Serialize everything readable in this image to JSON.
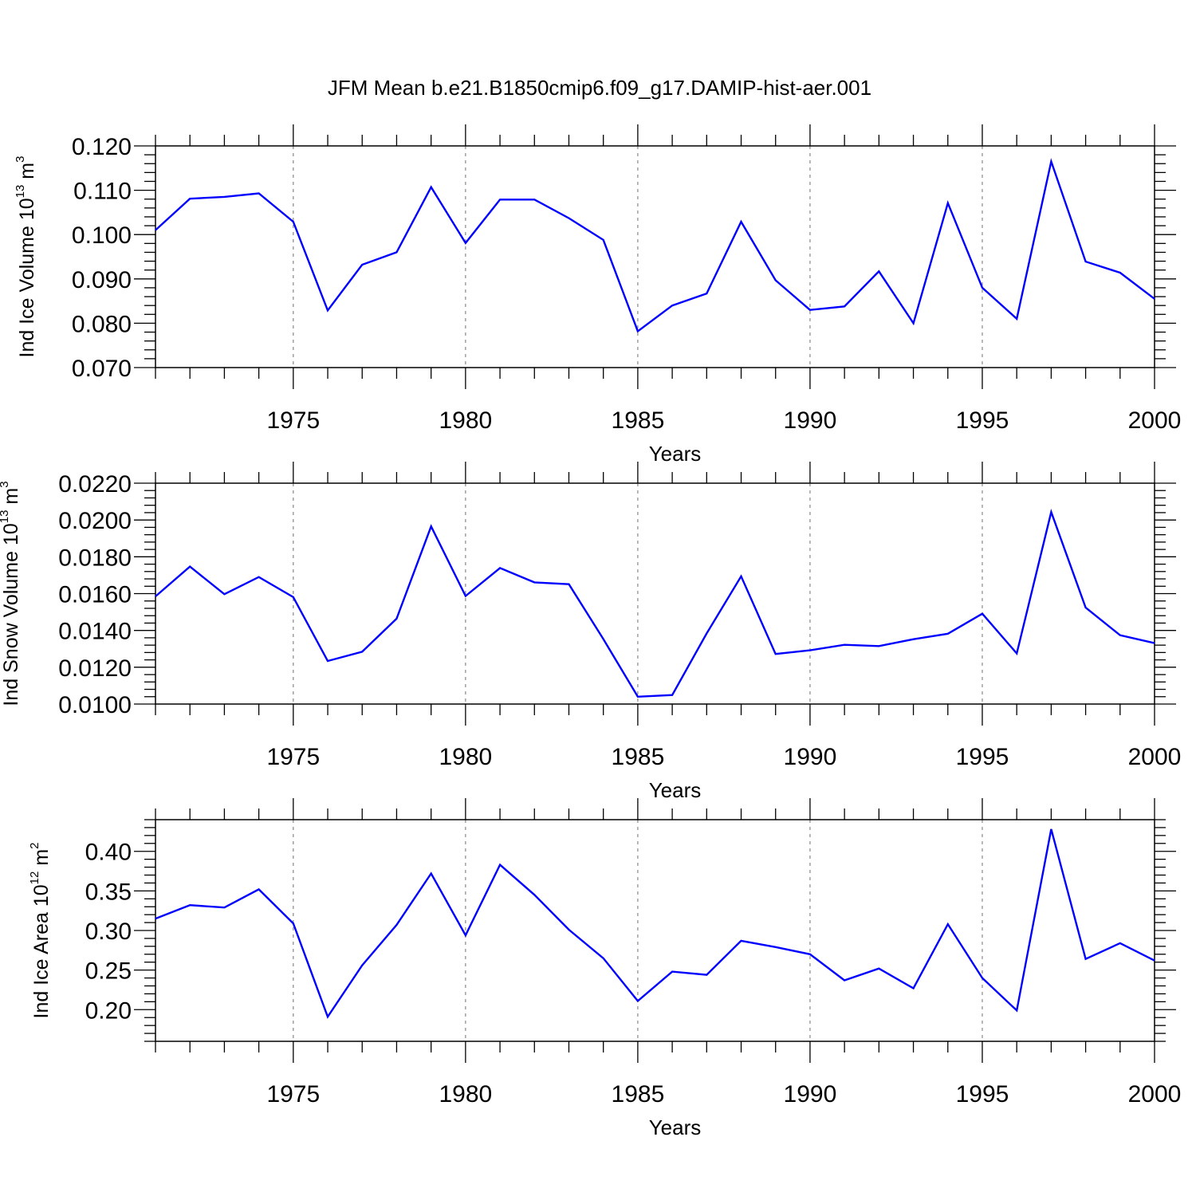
{
  "title": "JFM Mean b.e21.B1850cmip6.f09_g17.DAMIP-hist-aer.001",
  "chart_data": [
    {
      "type": "line",
      "id": "ice-volume",
      "ylabel": "Ind Ice Volume 10",
      "ylabel_exp": "13",
      "ylabel_unit": " m",
      "ylabel_unit_exp": "3",
      "xlabel": "Years",
      "xlim": [
        1971,
        2000
      ],
      "ylim": [
        0.07,
        0.12
      ],
      "yticks": [
        0.07,
        0.08,
        0.09,
        0.1,
        0.11,
        0.12
      ],
      "ytick_labels": [
        "0.070",
        "0.080",
        "0.090",
        "0.100",
        "0.110",
        "0.120"
      ],
      "xticks": [
        1975,
        1980,
        1985,
        1990,
        1995,
        2000
      ],
      "xtick_labels": [
        "1975",
        "1980",
        "1985",
        "1990",
        "1995",
        "2000"
      ],
      "line_color": "#0000ff",
      "x": [
        1971,
        1972,
        1973,
        1974,
        1975,
        1976,
        1977,
        1978,
        1979,
        1980,
        1981,
        1982,
        1983,
        1984,
        1985,
        1986,
        1987,
        1988,
        1989,
        1990,
        1991,
        1992,
        1993,
        1994,
        1995,
        1996,
        1997,
        1998,
        1999,
        2000
      ],
      "values": [
        0.101,
        0.1081,
        0.1085,
        0.1093,
        0.1029,
        0.0829,
        0.0932,
        0.096,
        0.1107,
        0.0981,
        0.1079,
        0.1079,
        0.1037,
        0.0988,
        0.0782,
        0.084,
        0.0867,
        0.1029,
        0.0897,
        0.083,
        0.0838,
        0.0917,
        0.08,
        0.1071,
        0.088,
        0.081,
        0.1165,
        0.0939,
        0.0914,
        0.0855
      ]
    },
    {
      "type": "line",
      "id": "snow-volume",
      "ylabel": "Ind Snow Volume 10",
      "ylabel_exp": "13",
      "ylabel_unit": " m",
      "ylabel_unit_exp": "3",
      "xlabel": "Years",
      "xlim": [
        1971,
        2000
      ],
      "ylim": [
        0.01,
        0.022
      ],
      "yticks": [
        0.01,
        0.012,
        0.014,
        0.016,
        0.018,
        0.02,
        0.022
      ],
      "ytick_labels": [
        "0.0100",
        "0.0120",
        "0.0140",
        "0.0160",
        "0.0180",
        "0.0200",
        "0.0220"
      ],
      "xticks": [
        1975,
        1980,
        1985,
        1990,
        1995,
        2000
      ],
      "xtick_labels": [
        "1975",
        "1980",
        "1985",
        "1990",
        "1995",
        "2000"
      ],
      "line_color": "#0000ff",
      "x": [
        1971,
        1972,
        1973,
        1974,
        1975,
        1976,
        1977,
        1978,
        1979,
        1980,
        1981,
        1982,
        1983,
        1984,
        1985,
        1986,
        1987,
        1988,
        1989,
        1990,
        1991,
        1992,
        1993,
        1994,
        1995,
        1996,
        1997,
        1998,
        1999,
        2000
      ],
      "values": [
        0.01585,
        0.01747,
        0.01597,
        0.0169,
        0.01581,
        0.01234,
        0.01284,
        0.01464,
        0.01965,
        0.01587,
        0.01739,
        0.01661,
        0.01651,
        0.01353,
        0.0104,
        0.01049,
        0.01384,
        0.01694,
        0.01272,
        0.01292,
        0.01322,
        0.01315,
        0.01352,
        0.01382,
        0.01491,
        0.01275,
        0.02043,
        0.01524,
        0.01374,
        0.01331
      ]
    },
    {
      "type": "line",
      "id": "ice-area",
      "ylabel": "Ind Ice Area 10",
      "ylabel_exp": "12",
      "ylabel_unit": " m",
      "ylabel_unit_exp": "2",
      "xlabel": "Years",
      "xlim": [
        1971,
        2000
      ],
      "ylim": [
        0.16,
        0.44
      ],
      "yticks": [
        0.2,
        0.25,
        0.3,
        0.35,
        0.4
      ],
      "ytick_labels": [
        "0.20",
        "0.25",
        "0.30",
        "0.35",
        "0.40"
      ],
      "xticks": [
        1975,
        1980,
        1985,
        1990,
        1995,
        2000
      ],
      "xtick_labels": [
        "1975",
        "1980",
        "1985",
        "1990",
        "1995",
        "2000"
      ],
      "line_color": "#0000ff",
      "x": [
        1971,
        1972,
        1973,
        1974,
        1975,
        1976,
        1977,
        1978,
        1979,
        1980,
        1981,
        1982,
        1983,
        1984,
        1985,
        1986,
        1987,
        1988,
        1989,
        1990,
        1991,
        1992,
        1993,
        1994,
        1995,
        1996,
        1997,
        1998,
        1999,
        2000
      ],
      "values": [
        0.315,
        0.332,
        0.329,
        0.352,
        0.309,
        0.191,
        0.256,
        0.307,
        0.372,
        0.294,
        0.383,
        0.345,
        0.301,
        0.265,
        0.211,
        0.248,
        0.244,
        0.287,
        0.279,
        0.27,
        0.237,
        0.252,
        0.227,
        0.308,
        0.24,
        0.199,
        0.428,
        0.264,
        0.284,
        0.262
      ]
    }
  ]
}
